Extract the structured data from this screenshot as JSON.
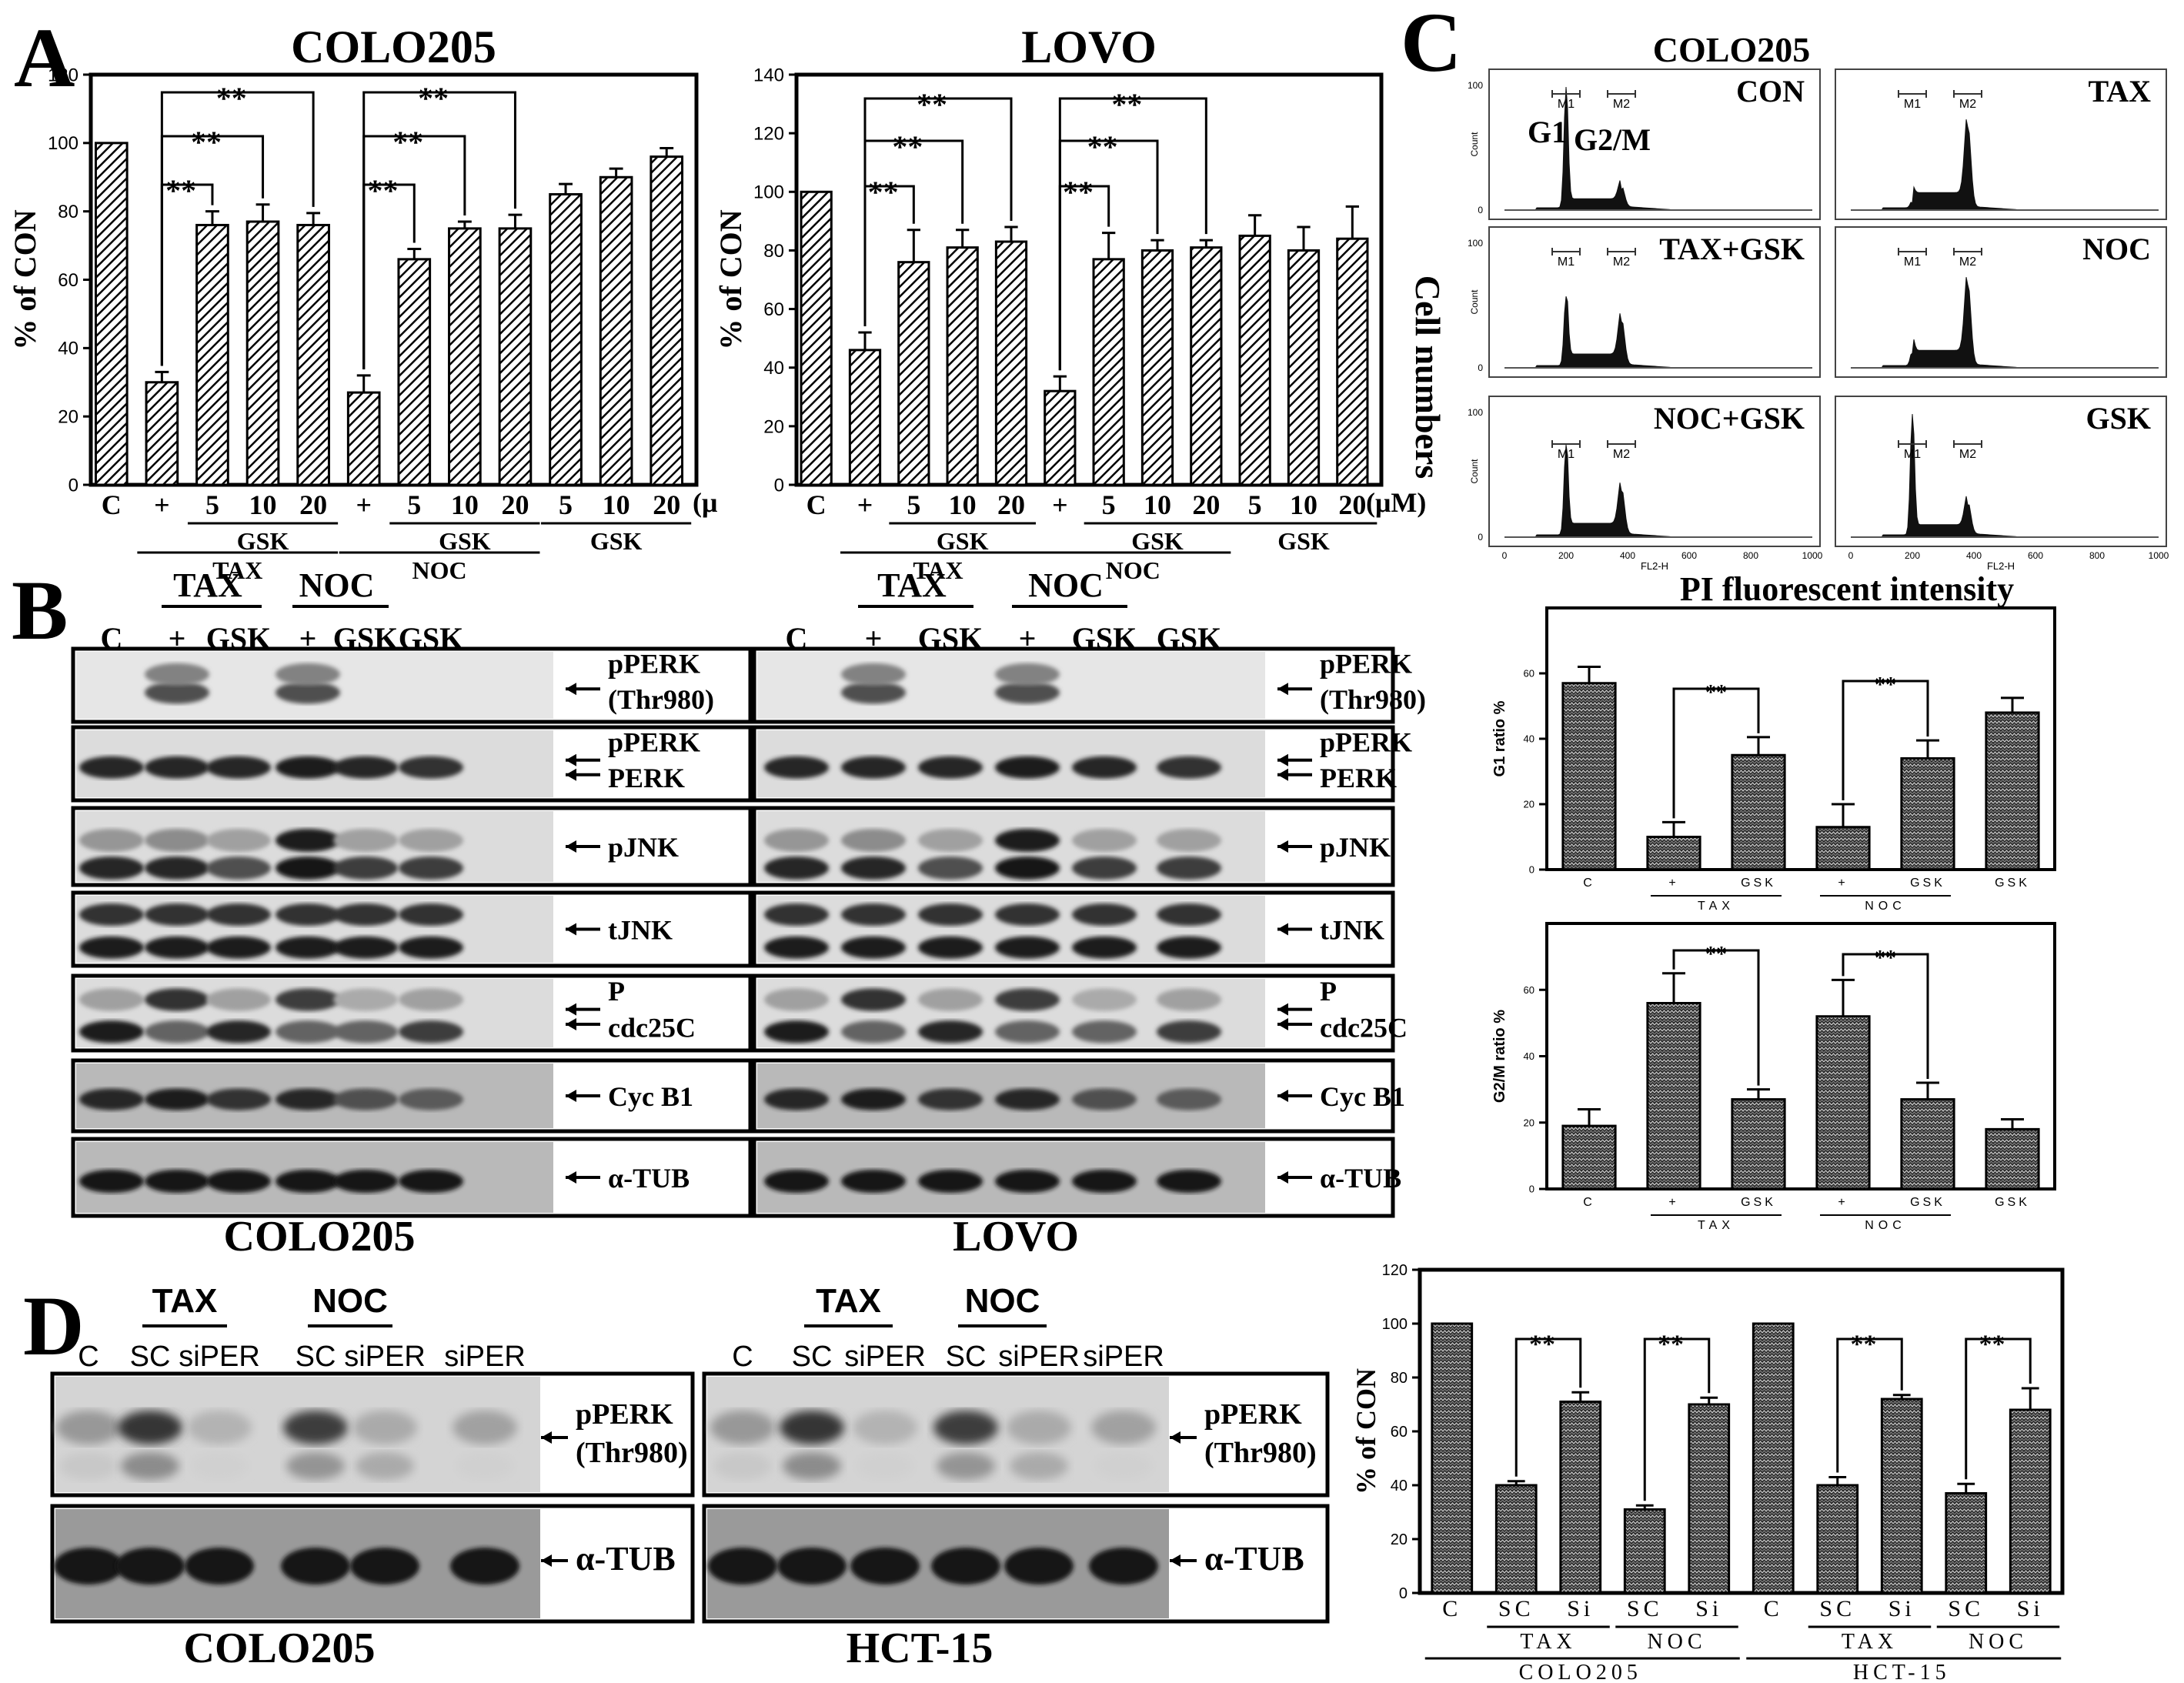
{
  "panel_letters": {
    "A": "A",
    "B": "B",
    "C": "C",
    "D": "D"
  },
  "units": {
    "uM": "(μM)",
    "uM_cut": "(μ"
  },
  "panelA": {
    "ylabel": "% of CON",
    "x_top": [
      "C",
      "+",
      "5",
      "10",
      "20",
      "+",
      "5",
      "10",
      "20",
      "5",
      "10",
      "20"
    ],
    "group_gsk": "GSK",
    "group_tax": "TAX",
    "group_noc": "NOC",
    "sig": "**"
  },
  "panelB": {
    "lanes": [
      "C",
      "+",
      "GSK",
      "+",
      "GSK",
      "GSK"
    ],
    "tax": "TAX",
    "noc": "NOC",
    "bands": [
      [
        "pPERK",
        "(Thr980)"
      ],
      [
        "pPERK",
        "PERK"
      ],
      [
        "pJNK"
      ],
      [
        "tJNK"
      ],
      [
        "P",
        "cdc25C"
      ],
      [
        "Cyc B1"
      ],
      [
        "α-TUB"
      ]
    ],
    "cell_left": "COLO205",
    "cell_right": "LOVO"
  },
  "panelC": {
    "title": "COLO205",
    "ylabel": "Cell numbers",
    "xlabel": "PI fluorescent intensity",
    "histograms": [
      {
        "label": "CON",
        "g1": 100,
        "g2m": 18
      },
      {
        "label": "TAX",
        "g1": 6,
        "g2m": 72
      },
      {
        "label": "TAX+GSK",
        "g1": 58,
        "g2m": 40
      },
      {
        "label": "NOC",
        "g1": 12,
        "g2m": 72
      },
      {
        "label": "NOC+GSK",
        "g1": 75,
        "g2m": 40
      },
      {
        "label": "GSK",
        "g1": 100,
        "g2m": 28
      }
    ],
    "peak_g1": "G1",
    "peak_g2m": "G2/M",
    "marker_m1": "M1",
    "marker_m2": "M2",
    "hist_yticks": [
      "0",
      "100"
    ],
    "hist_xticks": [
      "0",
      "200",
      "400",
      "600",
      "800",
      "1000"
    ],
    "hist_axis_y": "Count",
    "hist_axis_x": "FL2-H"
  },
  "chart_data": [
    {
      "type": "bar",
      "title": "COLO205",
      "ylabel": "% of CON",
      "ylim": [
        0,
        120
      ],
      "yticks": [
        0,
        20,
        40,
        60,
        80,
        100,
        120
      ],
      "categories": [
        "C",
        "TAX +",
        "TAX+GSK 5",
        "TAX+GSK 10",
        "TAX+GSK 20",
        "NOC +",
        "NOC+GSK 5",
        "NOC+GSK 10",
        "NOC+GSK 20",
        "GSK 5",
        "GSK 10",
        "GSK 20"
      ],
      "values": [
        100,
        30,
        76,
        77,
        76,
        27,
        66,
        75,
        75,
        85,
        90,
        96
      ],
      "errors": [
        0,
        3,
        4,
        5,
        3.5,
        5,
        3,
        2,
        4,
        3,
        2.5,
        2.5
      ]
    },
    {
      "type": "bar",
      "title": "LOVO",
      "ylabel": "% of CON",
      "ylim": [
        0,
        140
      ],
      "yticks": [
        0,
        20,
        40,
        60,
        80,
        100,
        120,
        140
      ],
      "categories": [
        "C",
        "TAX +",
        "TAX+GSK 5",
        "TAX+GSK 10",
        "TAX+GSK 20",
        "NOC +",
        "NOC+GSK 5",
        "NOC+GSK 10",
        "NOC+GSK 20",
        "GSK 5",
        "GSK 10",
        "GSK 20"
      ],
      "values": [
        100,
        46,
        76,
        81,
        83,
        32,
        77,
        80,
        81,
        85,
        80,
        84
      ],
      "errors": [
        0,
        6,
        11,
        6,
        5,
        5,
        9,
        3.5,
        2.5,
        7,
        8,
        11
      ]
    },
    {
      "type": "bar",
      "title": "",
      "ylabel": "G1 ratio %",
      "ylim": [
        0,
        80
      ],
      "yticks": [
        "0",
        "20",
        "40",
        "60"
      ],
      "categories": [
        "C",
        "TAX +",
        "TAX GSK",
        "NOC +",
        "NOC GSK",
        "GSK"
      ],
      "values": [
        57,
        10,
        35,
        13,
        34,
        48
      ],
      "errors": [
        5,
        4.5,
        5.5,
        7,
        5.5,
        4.5
      ]
    },
    {
      "type": "bar",
      "title": "",
      "ylabel": "G2/M ratio %",
      "ylim": [
        0,
        80
      ],
      "yticks": [
        "0",
        "20",
        "40",
        "60"
      ],
      "categories": [
        "C",
        "TAX +",
        "TAX GSK",
        "NOC +",
        "NOC GSK",
        "GSK"
      ],
      "values": [
        19,
        56,
        27,
        52,
        27,
        18
      ],
      "errors": [
        5,
        9,
        3,
        11,
        5,
        3
      ]
    },
    {
      "type": "bar",
      "title": "",
      "ylabel": "% of CON",
      "ylim": [
        0,
        120
      ],
      "yticks": [
        0,
        20,
        40,
        60,
        80,
        100,
        120
      ],
      "categories": [
        "COLO205 C",
        "COLO205 TAX SC",
        "COLO205 TAX Si",
        "COLO205 NOC SC",
        "COLO205 NOC Si",
        "HCT-15 C",
        "HCT-15 TAX SC",
        "HCT-15 TAX Si",
        "HCT-15 NOC SC",
        "HCT-15 NOC Si"
      ],
      "values": [
        100,
        40,
        71,
        31,
        70,
        100,
        40,
        72,
        37,
        68
      ],
      "errors": [
        0,
        1.5,
        3.5,
        1.5,
        2.5,
        0,
        3,
        1.5,
        3.5,
        8
      ]
    }
  ],
  "panelD": {
    "tax": "TAX",
    "noc": "NOC",
    "lanes": [
      "C",
      "SC",
      "siPER",
      "SC",
      "siPER",
      "siPER"
    ],
    "band1": [
      "pPERK",
      "(Thr980)"
    ],
    "band2": "α-TUB",
    "cell_left": "COLO205",
    "cell_right": "HCT-15",
    "chart_x": [
      "C",
      "SC",
      "Si",
      "SC",
      "Si",
      "C",
      "SC",
      "Si",
      "SC",
      "Si"
    ],
    "chart_groups": [
      "TAX",
      "NOC",
      "TAX",
      "NOC"
    ],
    "chart_cells": [
      "COLO205",
      "HCT-15"
    ]
  },
  "panelC_bars": {
    "xlabels": [
      "C",
      "+",
      "GSK",
      "+",
      "GSK",
      "GSK"
    ],
    "groups": [
      "TAX",
      "NOC"
    ]
  }
}
